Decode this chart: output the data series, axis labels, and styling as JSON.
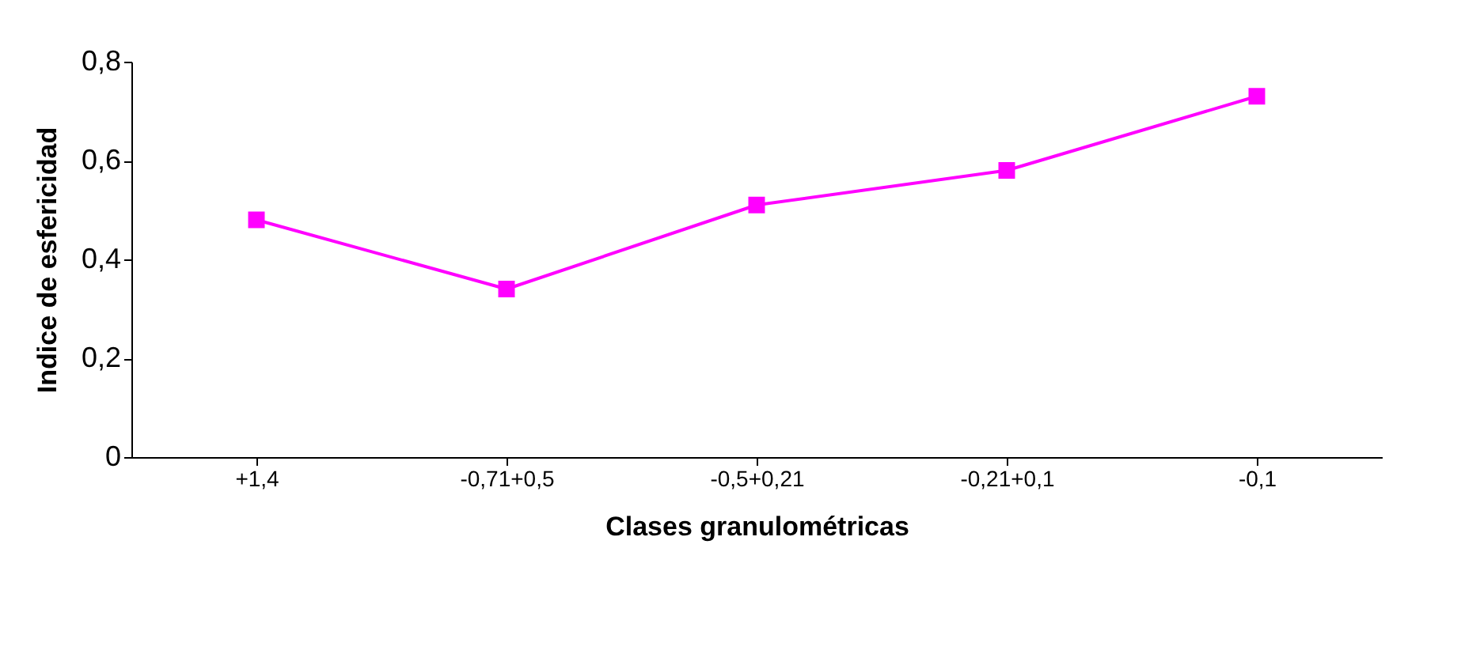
{
  "chart_data": {
    "type": "line",
    "xlabel": "Clases granulométricas",
    "ylabel": "Indice de esfericidad",
    "categories": [
      "+1,4",
      "-0,71+0,5",
      "-0,5+0,21",
      "-0,21+0,1",
      "-0,1"
    ],
    "series": [
      {
        "color": "#ff00ff",
        "values": [
          0.48,
          0.34,
          0.51,
          0.58,
          0.73
        ]
      }
    ],
    "ylim": [
      0,
      0.8
    ],
    "yticks": [
      {
        "value": 0,
        "label": "0"
      },
      {
        "value": 0.2,
        "label": "0,2"
      },
      {
        "value": 0.4,
        "label": "0,4"
      },
      {
        "value": 0.6,
        "label": "0,6"
      },
      {
        "value": 0.8,
        "label": "0,8"
      }
    ],
    "grid": false,
    "marker": "square",
    "line_style": "solid"
  }
}
